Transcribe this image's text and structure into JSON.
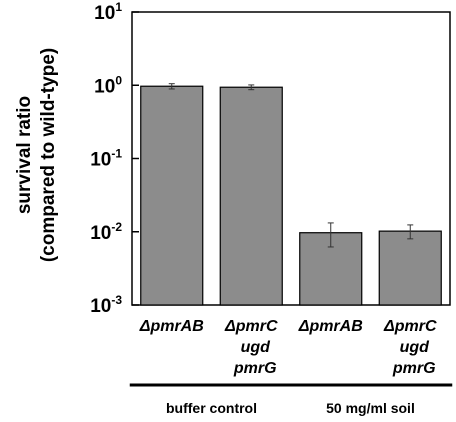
{
  "chart_data": {
    "type": "bar",
    "ylabel_lines": [
      "survival ratio",
      "(compared to wild-type)"
    ],
    "yscale": "log",
    "ylim": [
      0.001,
      10
    ],
    "yticks": [
      {
        "base": "10",
        "exp": "1"
      },
      {
        "base": "10",
        "exp": "0"
      },
      {
        "base": "10",
        "exp": "-1"
      },
      {
        "base": "10",
        "exp": "-2"
      },
      {
        "base": "10",
        "exp": "-3"
      }
    ],
    "categories": [
      {
        "prefix": "Δ",
        "lines": [
          "pmrAB"
        ]
      },
      {
        "prefix": "Δ",
        "lines": [
          "pmrC",
          "ugd",
          "pmrG"
        ]
      },
      {
        "prefix": "Δ",
        "lines": [
          "pmrAB"
        ]
      },
      {
        "prefix": "Δ",
        "lines": [
          "pmrC",
          "ugd",
          "pmrG"
        ]
      }
    ],
    "values": [
      0.97,
      0.94,
      0.0097,
      0.0102
    ],
    "errors": [
      0.08,
      0.07,
      0.0035,
      0.0022
    ],
    "groups": [
      {
        "label": "buffer control",
        "categories": [
          0,
          1
        ]
      },
      {
        "label": "50 mg/ml soil",
        "categories": [
          2,
          3
        ]
      }
    ],
    "grid": false,
    "bar_color": "#8c8c8c",
    "axis_color": "#000000"
  }
}
